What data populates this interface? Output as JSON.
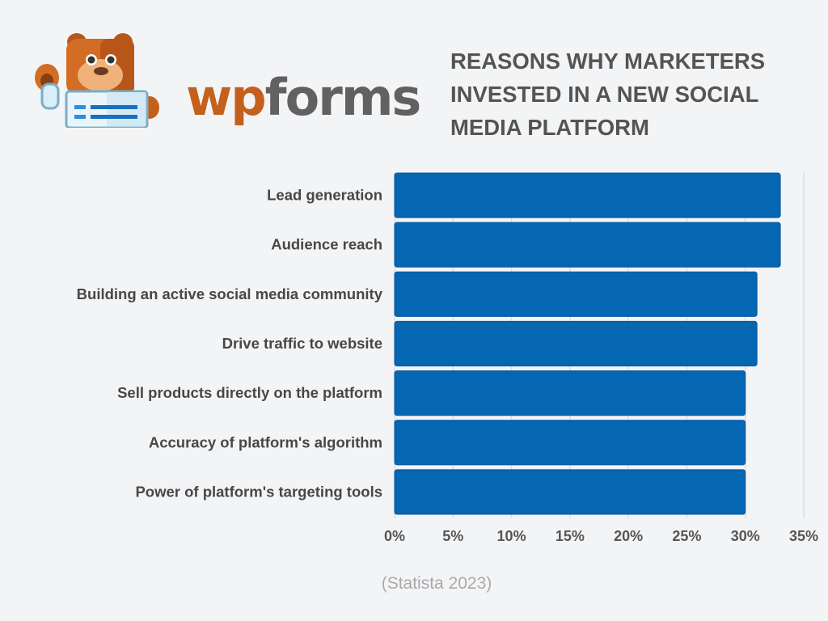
{
  "logo": {
    "part1": "wp",
    "part2": "forms"
  },
  "chart_data": {
    "type": "bar",
    "orientation": "horizontal",
    "title_lines": [
      "REASONS WHY MARKETERS",
      "INVESTED IN A NEW SOCIAL",
      "MEDIA PLATFORM"
    ],
    "categories": [
      "Lead generation",
      "Audience reach",
      "Building an active social media community",
      "Drive traffic to website",
      "Sell products directly on the platform",
      "Accuracy of platform's algorithm",
      "Power of platform's targeting tools"
    ],
    "values": [
      33,
      33,
      31,
      31,
      30,
      30,
      30
    ],
    "unit": "%",
    "xlim": [
      0,
      35
    ],
    "xticks": [
      "0%",
      "5%",
      "10%",
      "15%",
      "20%",
      "25%",
      "30%",
      "35%"
    ],
    "xtick_values": [
      0,
      5,
      10,
      15,
      20,
      25,
      30,
      35
    ],
    "grid": true,
    "bar_color": "#0567b1",
    "source": "(Statista 2023)"
  }
}
